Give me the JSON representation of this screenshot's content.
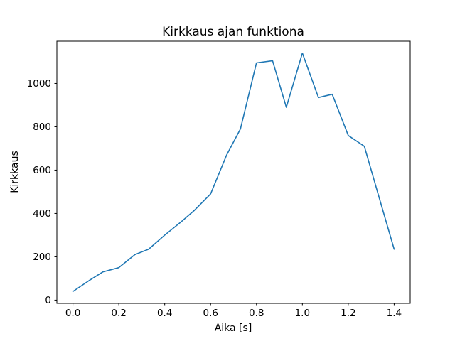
{
  "chart_data": {
    "type": "line",
    "title": "Kirkkaus ajan funktiona",
    "xlabel": "Aika [s]",
    "ylabel": "Kirkkaus",
    "x": [
      0.0,
      0.07,
      0.13,
      0.2,
      0.27,
      0.33,
      0.4,
      0.47,
      0.53,
      0.6,
      0.67,
      0.73,
      0.8,
      0.87,
      0.93,
      1.0,
      1.07,
      1.13,
      1.2,
      1.27,
      1.33,
      1.4
    ],
    "y": [
      40,
      90,
      130,
      150,
      210,
      235,
      300,
      360,
      415,
      490,
      670,
      790,
      1095,
      1105,
      890,
      1140,
      935,
      950,
      760,
      710,
      490,
      235
    ],
    "xticks": [
      0.0,
      0.2,
      0.4,
      0.6,
      0.8,
      1.0,
      1.2,
      1.4
    ],
    "xtick_labels": [
      "0.0",
      "0.2",
      "0.4",
      "0.6",
      "0.8",
      "1.0",
      "1.2",
      "1.4"
    ],
    "yticks": [
      0,
      200,
      400,
      600,
      800,
      1000
    ],
    "ytick_labels": [
      "0",
      "200",
      "400",
      "600",
      "800",
      "1000"
    ],
    "xlim": [
      -0.07,
      1.47
    ],
    "ylim": [
      -15,
      1195
    ],
    "line_color": "#1f77b4",
    "spine_color": "#000000",
    "background": "#ffffff",
    "grid": false,
    "legend": "none"
  }
}
